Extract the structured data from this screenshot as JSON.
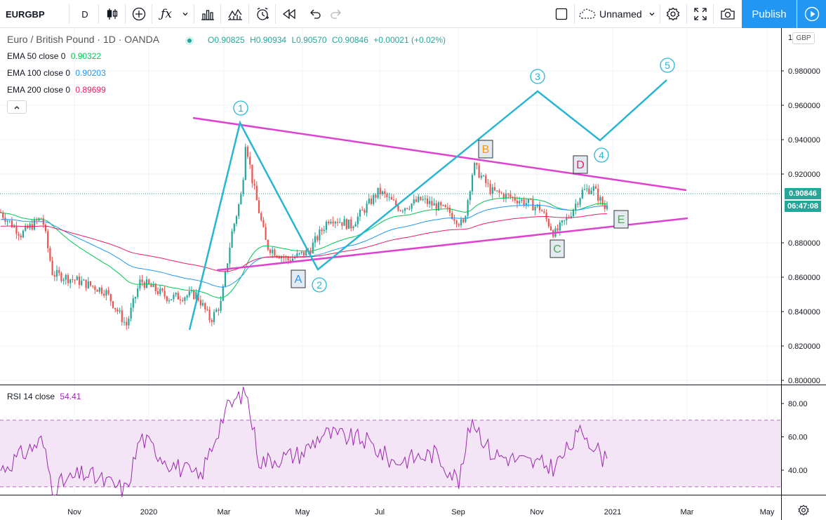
{
  "toolbar": {
    "symbol": "EURGBP",
    "interval": "D",
    "layout_name": "Unnamed",
    "publish_label": "Publish"
  },
  "chart": {
    "title": "Euro / British Pound · 1D · OANDA",
    "ohlc": {
      "open": "O0.90825",
      "high": "H0.90934",
      "low": "L0.90570",
      "close": "C0.90846",
      "change": "+0.00021 (+0.02%)"
    },
    "indicators": [
      {
        "label": "EMA 50 close 0",
        "value": "0.90322",
        "color": "#00c853"
      },
      {
        "label": "EMA 100 close 0",
        "value": "0.90203",
        "color": "#2196f3"
      },
      {
        "label": "EMA 200 close 0",
        "value": "0.89699",
        "color": "#e91e63"
      }
    ],
    "currency": "GBP",
    "last_price": "0.90846",
    "countdown": "06:47:08",
    "colors": {
      "up": "#26a69a",
      "down": "#ef5350",
      "wave": "#26b6d4",
      "triangle": "#e040d0",
      "rsi": "#9c27b0",
      "rsi_band": "#f3e5f5"
    },
    "wave_labels": [
      "1",
      "2",
      "3",
      "4",
      "5"
    ],
    "triangle_labels": [
      {
        "text": "A",
        "color": "#2196f3"
      },
      {
        "text": "B",
        "color": "#ff9800"
      },
      {
        "text": "C",
        "color": "#4caf50"
      },
      {
        "text": "D",
        "color": "#e91e63"
      },
      {
        "text": "E",
        "color": "#4caf50"
      }
    ],
    "rsi": {
      "label": "RSI 14 close",
      "value": "54.41"
    }
  },
  "chart_data": {
    "type": "line",
    "series": [
      {
        "name": "EMA 50 close 0",
        "values": [
          0.90322
        ]
      },
      {
        "name": "EMA 100 close 0",
        "values": [
          0.90203
        ]
      },
      {
        "name": "EMA 200 close 0",
        "values": [
          0.89699
        ]
      }
    ],
    "price_axis": {
      "ticks": [
        "0.980000",
        "0.960000",
        "0.940000",
        "0.920000",
        "0.880000",
        "0.860000",
        "0.840000",
        "0.820000",
        "0.800000"
      ],
      "top_tick": "1"
    },
    "time_axis": [
      "Nov",
      "2020",
      "Mar",
      "May",
      "Jul",
      "Sep",
      "Nov",
      "2021",
      "Mar",
      "May"
    ],
    "rsi_axis": [
      "80.00",
      "60.00",
      "40.00"
    ]
  }
}
